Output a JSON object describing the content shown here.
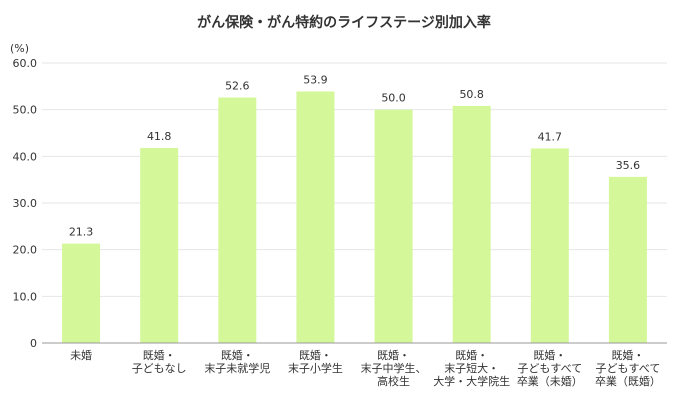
{
  "chart_data": {
    "type": "bar",
    "title": "がん保険・がん特約のライフステージ別加入率",
    "ylabel": "(%)",
    "xlabel": "",
    "ylim": [
      0,
      60
    ],
    "y_ticks": [
      "0",
      "10.0",
      "20.0",
      "30.0",
      "40.0",
      "50.0",
      "60.0"
    ],
    "grid": true,
    "bar_color": "#d4f79a",
    "categories": [
      [
        "未婚"
      ],
      [
        "既婚・",
        "子どもなし"
      ],
      [
        "既婚・",
        "末子未就学児"
      ],
      [
        "既婚・",
        "末子小学生"
      ],
      [
        "既婚・",
        "末子中学生、",
        "高校生"
      ],
      [
        "既婚・",
        "末子短大・",
        "大学・大学院生"
      ],
      [
        "既婚・",
        "子どもすべて",
        "卒業（未婚）"
      ],
      [
        "既婚・",
        "子どもすべて",
        "卒業（既婚）"
      ]
    ],
    "values": [
      21.3,
      41.8,
      52.6,
      53.9,
      50.0,
      50.8,
      41.7,
      35.6
    ],
    "value_labels": [
      "21.3",
      "41.8",
      "52.6",
      "53.9",
      "50.0",
      "50.8",
      "41.7",
      "35.6"
    ]
  }
}
